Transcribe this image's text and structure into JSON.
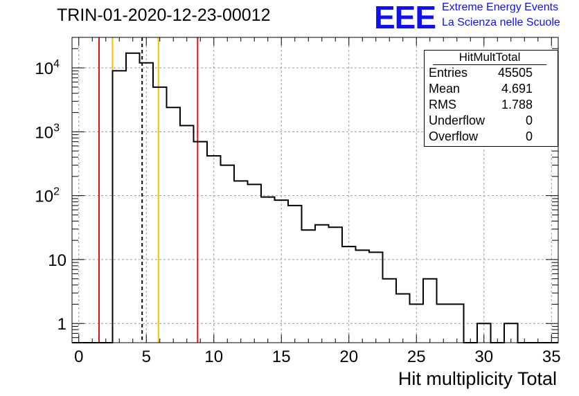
{
  "title": "TRIN-01-2020-12-23-00012",
  "logo": {
    "text": "EEE",
    "line1": "Extreme Energy Events",
    "line2": "La Scienza nelle Scuole",
    "color": "#1010ee"
  },
  "stats": {
    "title": "HitMultTotal",
    "rows": [
      {
        "key": "Entries",
        "value": "45505"
      },
      {
        "key": "Mean",
        "value": "4.691"
      },
      {
        "key": "RMS",
        "value": "1.788"
      },
      {
        "key": "Underflow",
        "value": "0"
      },
      {
        "key": "Overflow",
        "value": "0"
      }
    ]
  },
  "chart_data": {
    "type": "histogram",
    "title": "TRIN-01-2020-12-23-00012",
    "xlabel": "Hit multiplicity Total",
    "ylabel": "",
    "xlim": [
      -0.5,
      35.5
    ],
    "ylim": [
      0.5,
      30000
    ],
    "log_y": true,
    "grid": true,
    "x_ticks": [
      0,
      5,
      10,
      15,
      20,
      25,
      30,
      35
    ],
    "y_ticks": [
      {
        "value": 1,
        "base": "1",
        "exp": ""
      },
      {
        "value": 10,
        "base": "10",
        "exp": ""
      },
      {
        "value": 100,
        "base": "10",
        "exp": "2"
      },
      {
        "value": 1000,
        "base": "10",
        "exp": "3"
      },
      {
        "value": 10000,
        "base": "10",
        "exp": "4"
      }
    ],
    "bin_width": 1,
    "bin_centers": [
      0,
      1,
      2,
      3,
      4,
      5,
      6,
      7,
      8,
      9,
      10,
      11,
      12,
      13,
      14,
      15,
      16,
      17,
      18,
      19,
      20,
      21,
      22,
      23,
      24,
      25,
      26,
      27,
      28,
      29,
      30,
      31,
      32,
      33,
      34,
      35
    ],
    "counts": [
      0,
      0,
      0,
      9000,
      17000,
      12000,
      5000,
      2400,
      1250,
      700,
      420,
      300,
      170,
      150,
      95,
      85,
      70,
      29,
      35,
      32,
      16,
      14,
      13,
      5,
      2.9,
      2,
      5,
      2,
      2,
      0,
      1,
      0,
      1,
      0,
      0,
      0
    ],
    "line_color": "#000000",
    "vertical_lines": [
      {
        "x": 1.5,
        "color": "#dd1111",
        "style": "solid"
      },
      {
        "x": 2.5,
        "color": "#f2c200",
        "style": "solid"
      },
      {
        "x": 4.691,
        "color": "#000000",
        "style": "dashed"
      },
      {
        "x": 5.9,
        "color": "#f2c200",
        "style": "solid"
      },
      {
        "x": 8.8,
        "color": "#dd1111",
        "style": "solid"
      }
    ]
  }
}
